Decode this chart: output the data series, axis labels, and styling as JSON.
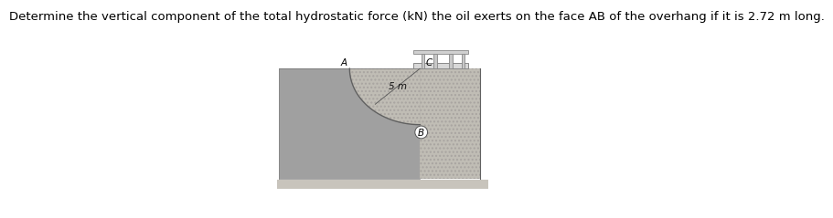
{
  "title_text": "Determine the vertical component of the total hydrostatic force (kN) the oil exerts on the face AB of the overhang if it is 2.72 m long.",
  "title_fontsize": 9.5,
  "fig_width": 8.33,
  "fig_height": 2.29,
  "bg_color": "#ffffff",
  "fluid_color": "#a0a0a0",
  "stone_color": "#c0bdb5",
  "ground_color": "#c8c4bc",
  "platform_color": "#d0d0d0",
  "arc_line_color": "#606060",
  "label_fontsize": 7.5,
  "dim_fontsize": 7.5,
  "label_A": "A",
  "label_B": "B",
  "label_C": "C",
  "dim_label": "5 m"
}
